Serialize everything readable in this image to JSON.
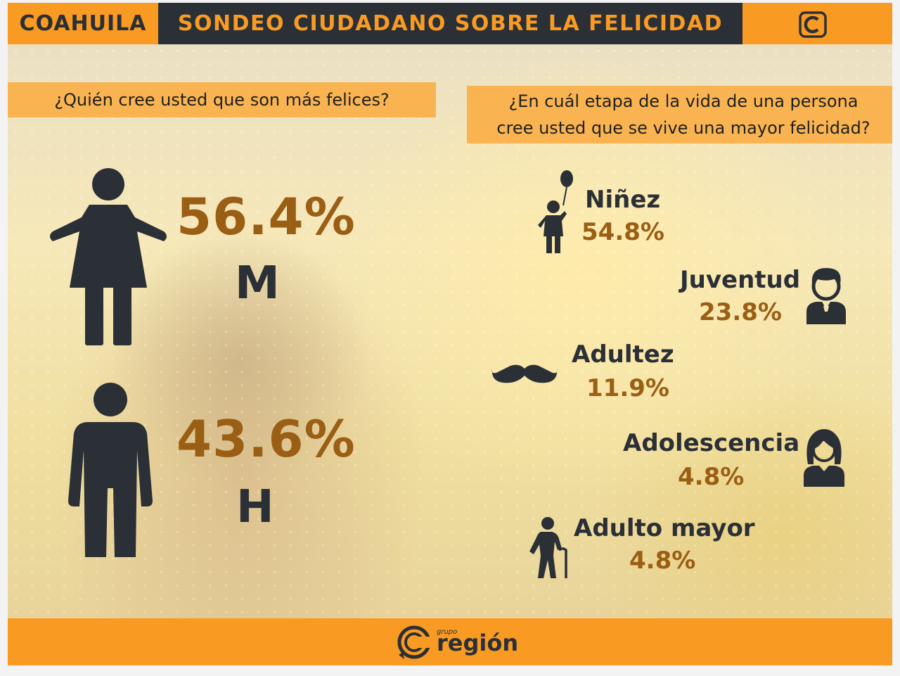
{
  "header": {
    "region": "COAHUILA",
    "title": "SONDEO CIUDADANO SOBRE LA FELICIDAD",
    "logo_icon": "c-logo-icon"
  },
  "gender_question": {
    "text": "¿Quién cree usted que son más felices?",
    "women": {
      "percent": "56.4%",
      "letter": "M",
      "icon": "woman-icon"
    },
    "men": {
      "percent": "43.6%",
      "letter": "H",
      "icon": "man-icon"
    }
  },
  "stage_question": {
    "line1": "¿En cuál etapa de la vida de una persona",
    "line2": "cree usted que se vive una mayor felicidad?",
    "stages": [
      {
        "label": "Niñez",
        "value": "54.8%",
        "percent": 54.8,
        "icon": "child-balloon-icon"
      },
      {
        "label": "Juventud",
        "value": "23.8%",
        "percent": 23.8,
        "icon": "young-man-icon"
      },
      {
        "label": "Adultez",
        "value": "11.9%",
        "percent": 11.9,
        "icon": "mustache-icon"
      },
      {
        "label": "Adolescencia",
        "value": "4.8%",
        "percent": 4.8,
        "icon": "teen-girl-icon"
      },
      {
        "label": "Adulto mayor",
        "value": "4.8%",
        "percent": 4.8,
        "icon": "elderly-cane-icon"
      }
    ]
  },
  "footer": {
    "brand_prefix": "grupo",
    "brand_name": "región",
    "logo_icon": "grupo-region-logo-icon"
  },
  "colors": {
    "orange": "#f99b22",
    "dark": "#2b2f36",
    "percent_brown": "#9a5e14",
    "banner": "#f9b451"
  }
}
